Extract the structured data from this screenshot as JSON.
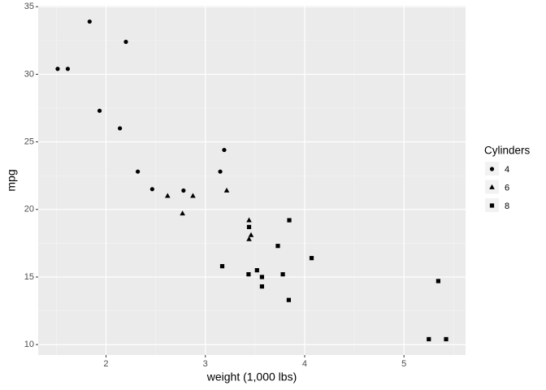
{
  "chart_data": {
    "type": "scatter",
    "xlabel": "weight (1,000 lbs)",
    "ylabel": "mpg",
    "legend_title": "Cylinders",
    "legend": "right",
    "xlim": [
      1.317,
      5.62
    ],
    "ylim": [
      9.225,
      35.075
    ],
    "xticks": [
      2,
      3,
      4,
      5
    ],
    "yticks": [
      10,
      15,
      20,
      25,
      30,
      35
    ],
    "x_minor_ticks": [
      1.5,
      2.5,
      3.5,
      4.5,
      5.5
    ],
    "y_minor_ticks": [
      12.5,
      17.5,
      22.5,
      27.5,
      32.5
    ],
    "grid": true,
    "color": "#000000",
    "series": [
      {
        "name": "4",
        "shape": "circle",
        "x": [
          2.32,
          3.19,
          3.15,
          2.2,
          1.615,
          1.835,
          2.465,
          1.935,
          2.14,
          1.513,
          2.78
        ],
        "values": [
          22.8,
          24.4,
          22.8,
          32.4,
          30.4,
          33.9,
          21.5,
          27.3,
          26.0,
          30.4,
          21.4
        ]
      },
      {
        "name": "6",
        "shape": "triangle",
        "x": [
          2.62,
          2.875,
          3.215,
          3.46,
          3.44,
          3.44,
          2.77
        ],
        "values": [
          21.0,
          21.0,
          21.4,
          18.1,
          19.2,
          17.8,
          19.7
        ]
      },
      {
        "name": "8",
        "shape": "square",
        "x": [
          3.44,
          3.57,
          4.07,
          3.73,
          3.78,
          5.25,
          5.424,
          5.345,
          3.52,
          3.435,
          3.84,
          3.845,
          3.17,
          3.57
        ],
        "values": [
          18.7,
          14.3,
          16.4,
          17.3,
          15.2,
          10.4,
          10.4,
          14.7,
          15.5,
          15.2,
          13.3,
          19.2,
          15.8,
          15.0
        ]
      }
    ]
  }
}
